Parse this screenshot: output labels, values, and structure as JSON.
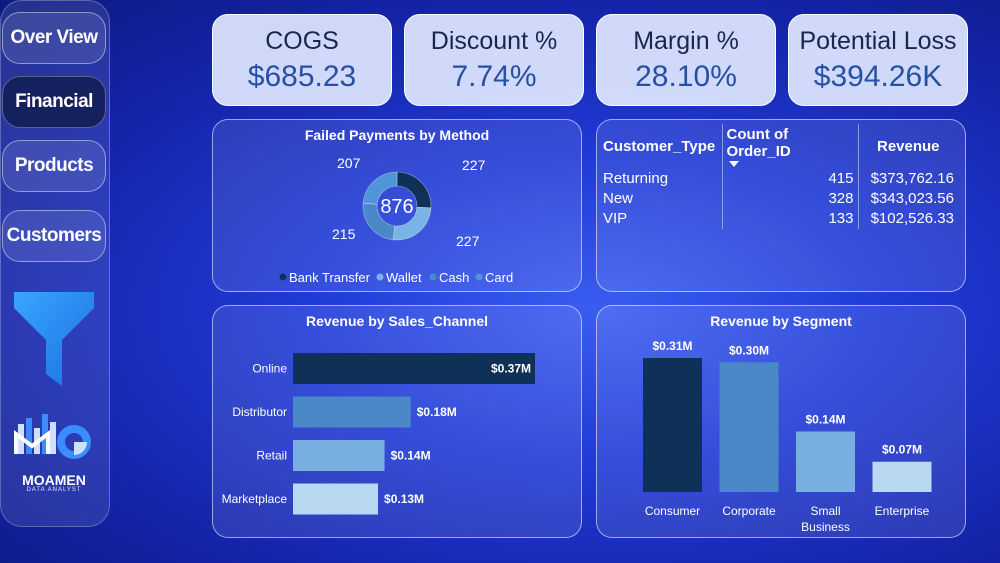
{
  "nav": {
    "items": [
      "Over View",
      "Financial",
      "Products",
      "Customers"
    ],
    "active": "Financial"
  },
  "logo": {
    "name": "MOAMEN",
    "subtitle": "DATA ANALYST"
  },
  "kpis": [
    {
      "label": "COGS",
      "value": "$685.23"
    },
    {
      "label": "Discount %",
      "value": "7.74%"
    },
    {
      "label": "Margin %",
      "value": "28.10%"
    },
    {
      "label": "Potential Loss",
      "value": "$394.26K"
    }
  ],
  "failed_payments": {
    "title": "Failed Payments by Method",
    "total": "876",
    "legend": [
      "Bank Transfer",
      "Wallet",
      "Cash",
      "Card"
    ]
  },
  "customer_table": {
    "headers": [
      "Customer_Type",
      "Count of Order_ID",
      "Revenue"
    ],
    "rows": [
      {
        "type": "Returning",
        "count": "415",
        "revenue": "$373,762.16"
      },
      {
        "type": "New",
        "count": "328",
        "revenue": "$343,023.56"
      },
      {
        "type": "VIP",
        "count": "133",
        "revenue": "$102,526.33"
      }
    ]
  },
  "colors": {
    "dark_navy": "#0f3157",
    "mid_blue": "#4a88c8",
    "light_blue": "#79aee0",
    "pale_blue": "#b9d8f2"
  },
  "chart_data": [
    {
      "type": "pie",
      "title": "Failed Payments by Method",
      "total_label": "876",
      "categories": [
        "Bank Transfer",
        "Wallet",
        "Cash",
        "Card"
      ],
      "values": [
        227,
        227,
        215,
        207
      ],
      "labels": [
        "227",
        "227",
        "215",
        "207"
      ],
      "colors": [
        "#0f3157",
        "#7ab3e6",
        "#4a88c8",
        "#4f95d8"
      ],
      "legend": "bottom"
    },
    {
      "type": "bar",
      "orientation": "horizontal",
      "title": "Revenue by Sales_Channel",
      "categories": [
        "Online",
        "Distributor",
        "Retail",
        "Marketplace"
      ],
      "values": [
        0.37,
        0.18,
        0.14,
        0.13
      ],
      "labels": [
        "$0.37M",
        "$0.18M",
        "$0.14M",
        "$0.13M"
      ],
      "colors": [
        "#0f3157",
        "#4a88c8",
        "#79aee0",
        "#b9d8f2"
      ],
      "xlim": [
        0,
        0.37
      ]
    },
    {
      "type": "bar",
      "orientation": "vertical",
      "title": "Revenue by Segment",
      "categories": [
        "Consumer",
        "Corporate",
        "Small Business",
        "Enterprise"
      ],
      "category_lines": [
        [
          "Consumer"
        ],
        [
          "Corporate"
        ],
        [
          "Small",
          "Business"
        ],
        [
          "Enterprise"
        ]
      ],
      "values": [
        0.31,
        0.3,
        0.14,
        0.07
      ],
      "labels": [
        "$0.31M",
        "$0.30M",
        "$0.14M",
        "$0.07M"
      ],
      "colors": [
        "#0f3157",
        "#4a88c8",
        "#79aee0",
        "#b9d8f2"
      ],
      "ylim": [
        0,
        0.31
      ]
    }
  ]
}
